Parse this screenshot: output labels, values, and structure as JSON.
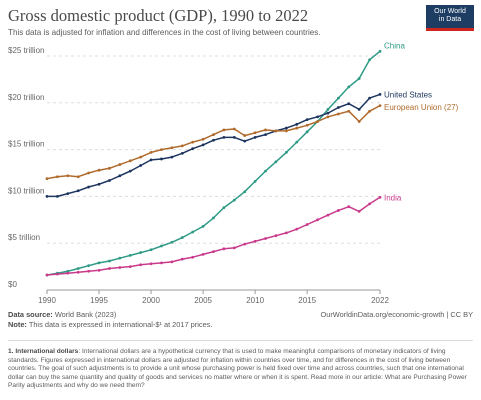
{
  "header": {
    "title": "Gross domestic product (GDP), 1990 to 2022",
    "subtitle": "This data is adjusted for inflation and differences in the cost of living between countries.",
    "logo_line1": "Our World",
    "logo_line2": "in Data"
  },
  "footer": {
    "source_label": "Data source:",
    "source_text": "World Bank (2023)",
    "note_label": "Note:",
    "note_text": "This data is expressed in international-$¹ at 2017 prices.",
    "url": "OurWorldinData.org/economic-growth | CC BY",
    "footnote_label": "1. International dollars",
    "footnote_text": ": International dollars are a hypothetical currency that is used to make meaningful comparisons of monetary indicators of living standards. Figures expressed in international dollars are adjusted for inflation within countries over time, and for differences in the cost of living between countries. The goal of such adjustments is to provide a unit whose purchasing power is held fixed over time and across countries, such that one international dollar can buy the same quantity and quality of goods and services no matter where or when it is spent. Read more in our article: What are Purchasing Power Parity adjustments and why do we need them?"
  },
  "chart_data": {
    "type": "line",
    "title": "Gross domestic product (GDP), 1990 to 2022",
    "subtitle": "This data is adjusted for inflation and differences in the cost of living between countries.",
    "xlabel": "",
    "ylabel": "",
    "xlim": [
      1990,
      2022
    ],
    "ylim": [
      0,
      25
    ],
    "x_ticks": [
      1990,
      1995,
      2000,
      2005,
      2010,
      2015,
      2022
    ],
    "y_ticks": [
      {
        "value": 0,
        "label": "$0"
      },
      {
        "value": 5,
        "label": "$5 trillion"
      },
      {
        "value": 10,
        "label": "$10 trillion"
      },
      {
        "value": 15,
        "label": "$15 trillion"
      },
      {
        "value": 20,
        "label": "$20 trillion"
      },
      {
        "value": 25,
        "label": "$25 trillion"
      }
    ],
    "grid": "horizontal dashed",
    "legend": "inline labels at line ends (right)",
    "x": [
      1990,
      1991,
      1992,
      1993,
      1994,
      1995,
      1996,
      1997,
      1998,
      1999,
      2000,
      2001,
      2002,
      2003,
      2004,
      2005,
      2006,
      2007,
      2008,
      2009,
      2010,
      2011,
      2012,
      2013,
      2014,
      2015,
      2016,
      2017,
      2018,
      2019,
      2020,
      2021,
      2022
    ],
    "series": [
      {
        "name": "China",
        "color": "#2d9a86",
        "values": [
          1.6,
          1.8,
          2.0,
          2.3,
          2.6,
          2.9,
          3.1,
          3.4,
          3.7,
          4.0,
          4.3,
          4.7,
          5.1,
          5.6,
          6.2,
          6.8,
          7.7,
          8.8,
          9.6,
          10.5,
          11.6,
          12.7,
          13.7,
          14.7,
          15.8,
          16.9,
          18.0,
          19.3,
          20.5,
          21.7,
          22.6,
          24.6,
          25.5
        ]
      },
      {
        "name": "United States",
        "color": "#1c355e",
        "values": [
          10.0,
          10.0,
          10.3,
          10.6,
          11.0,
          11.3,
          11.7,
          12.2,
          12.7,
          13.3,
          13.9,
          14.0,
          14.2,
          14.6,
          15.1,
          15.5,
          16.0,
          16.3,
          16.3,
          15.9,
          16.3,
          16.6,
          17.0,
          17.3,
          17.7,
          18.2,
          18.5,
          18.9,
          19.5,
          19.9,
          19.3,
          20.5,
          20.9
        ]
      },
      {
        "name": "European Union (27)",
        "color": "#b06b2c",
        "values": [
          11.9,
          12.1,
          12.2,
          12.1,
          12.5,
          12.8,
          13.0,
          13.4,
          13.8,
          14.2,
          14.7,
          15.0,
          15.2,
          15.4,
          15.8,
          16.1,
          16.6,
          17.1,
          17.2,
          16.5,
          16.8,
          17.1,
          17.0,
          17.0,
          17.3,
          17.6,
          18.0,
          18.5,
          18.8,
          19.1,
          18.0,
          19.1,
          19.7
        ]
      },
      {
        "name": "India",
        "color": "#c93a8c",
        "values": [
          1.6,
          1.7,
          1.8,
          1.9,
          2.0,
          2.1,
          2.3,
          2.4,
          2.5,
          2.7,
          2.8,
          2.9,
          3.0,
          3.3,
          3.5,
          3.8,
          4.1,
          4.4,
          4.5,
          4.9,
          5.2,
          5.5,
          5.8,
          6.1,
          6.5,
          7.0,
          7.5,
          8.0,
          8.5,
          8.9,
          8.4,
          9.2,
          9.9
        ]
      }
    ]
  }
}
